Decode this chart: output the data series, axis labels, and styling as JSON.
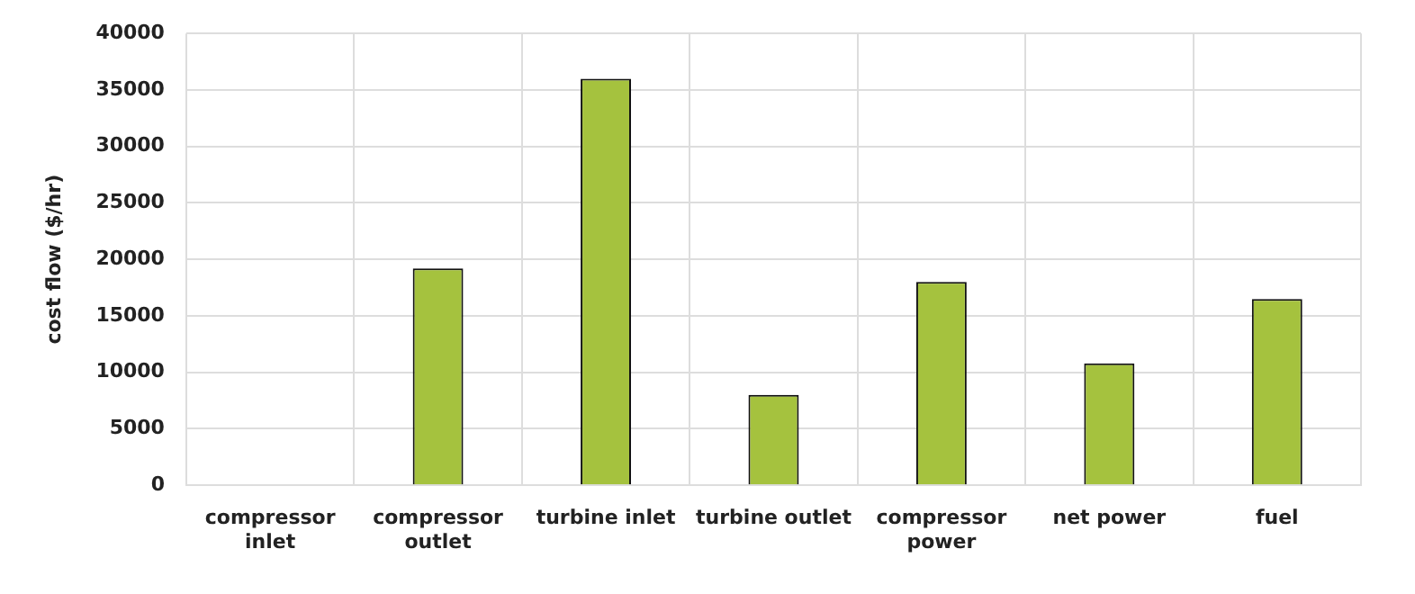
{
  "chart_data": {
    "type": "bar",
    "ylabel": "cost flow ($/hr)",
    "categories": [
      "compressor inlet",
      "compressor outlet",
      "turbine inlet",
      "turbine outlet",
      "compressor power",
      "net power",
      "fuel"
    ],
    "values": [
      0,
      19200,
      36000,
      8000,
      18000,
      10800,
      16500
    ],
    "color": "#a5c23e",
    "ylim": [
      0,
      40000
    ],
    "yticks": [
      0,
      5000,
      10000,
      15000,
      20000,
      25000,
      30000,
      35000,
      40000
    ],
    "grid": true
  }
}
